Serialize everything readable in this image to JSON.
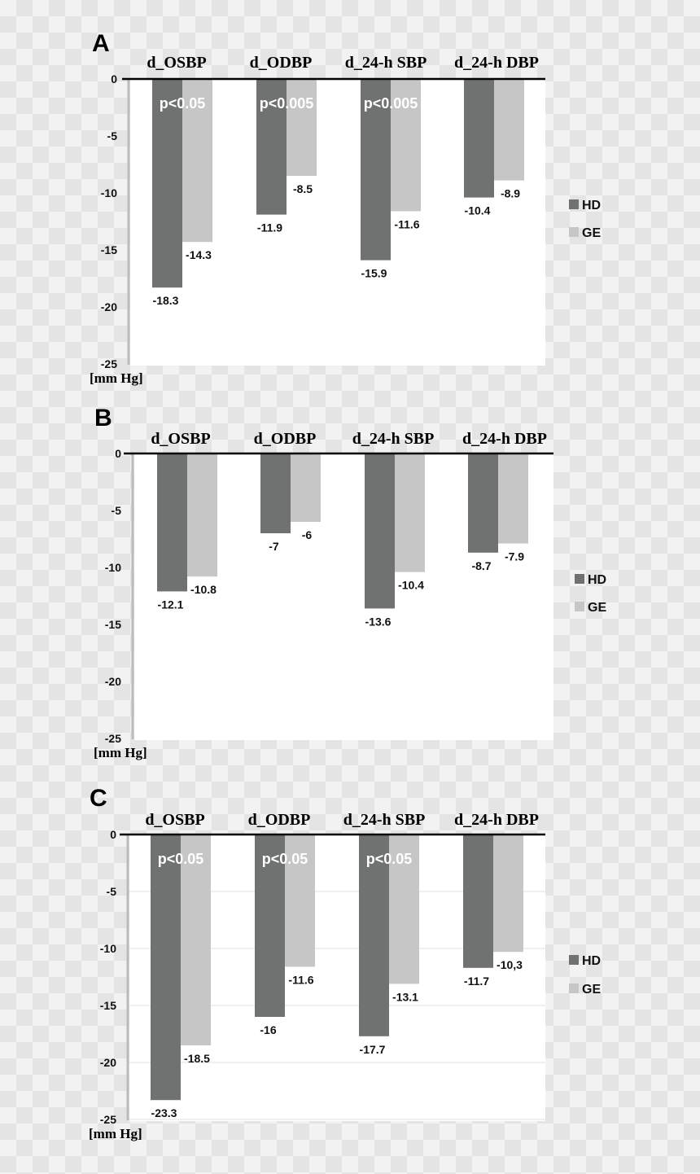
{
  "colors": {
    "hd": "#707272",
    "ge": "#c6c6c6",
    "axis": "#000000",
    "yaxis": "#bbbbbb",
    "grid": "#ececec",
    "annotation": "#ffffff"
  },
  "chart_data": [
    {
      "type": "bar",
      "panel_label": "A",
      "categories": [
        "d_OSBP",
        "d_ODBP",
        "d_24-h SBP",
        "d_24-h DBP"
      ],
      "series": [
        {
          "name": "HD",
          "values": [
            -18.3,
            -11.9,
            -15.9,
            -10.4
          ],
          "labels": [
            "-18.3",
            "-11.9",
            "-15.9",
            "-10.4"
          ]
        },
        {
          "name": "GE",
          "values": [
            -14.3,
            -8.5,
            -11.6,
            -8.9
          ],
          "labels": [
            "-14.3",
            "-8.5",
            "-11.6",
            "-8.9"
          ]
        }
      ],
      "annotations": [
        "p<0.05",
        "p<0.005",
        "p<0.005",
        ""
      ],
      "yticks": [
        "0",
        "-5",
        "-10",
        "-15",
        "-20",
        "-25"
      ],
      "ylim": [
        -25,
        0
      ],
      "unit": "[mm Hg]",
      "grid": false,
      "legend": "right"
    },
    {
      "type": "bar",
      "panel_label": "B",
      "categories": [
        "d_OSBP",
        "d_ODBP",
        "d_24-h SBP",
        "d_24-h DBP"
      ],
      "series": [
        {
          "name": "HD",
          "values": [
            -12.1,
            -7,
            -13.6,
            -8.7
          ],
          "labels": [
            "-12.1",
            "-7",
            "-13.6",
            "-8.7"
          ]
        },
        {
          "name": "GE",
          "values": [
            -10.8,
            -6,
            -10.4,
            -7.9
          ],
          "labels": [
            "-10.8",
            "-6",
            "-10.4",
            "-7.9"
          ]
        }
      ],
      "annotations": [
        "",
        "",
        "",
        ""
      ],
      "yticks": [
        "0",
        "-5",
        "-10",
        "-15",
        "-20",
        "-25"
      ],
      "ylim": [
        -25,
        0
      ],
      "unit": "[mm Hg]",
      "grid": false,
      "legend": "right"
    },
    {
      "type": "bar",
      "panel_label": "C",
      "categories": [
        "d_OSBP",
        "d_ODBP",
        "d_24-h SBP",
        "d_24-h DBP"
      ],
      "series": [
        {
          "name": "HD",
          "values": [
            -23.3,
            -16,
            -17.7,
            -11.7
          ],
          "labels": [
            "-23.3",
            "-16",
            "-17.7",
            "-11.7"
          ]
        },
        {
          "name": "GE",
          "values": [
            -18.5,
            -11.6,
            -13.1,
            -10.3
          ],
          "labels": [
            "-18.5",
            "-11.6",
            "-13.1",
            "-10,3"
          ]
        }
      ],
      "annotations": [
        "p<0.05",
        "p<0.05",
        "p<0.05",
        ""
      ],
      "yticks": [
        "0",
        "-5",
        "-10",
        "-15",
        "-20",
        "-25"
      ],
      "ylim": [
        -25,
        0
      ],
      "unit": "[mm Hg]",
      "grid": true,
      "legend": "right"
    }
  ]
}
